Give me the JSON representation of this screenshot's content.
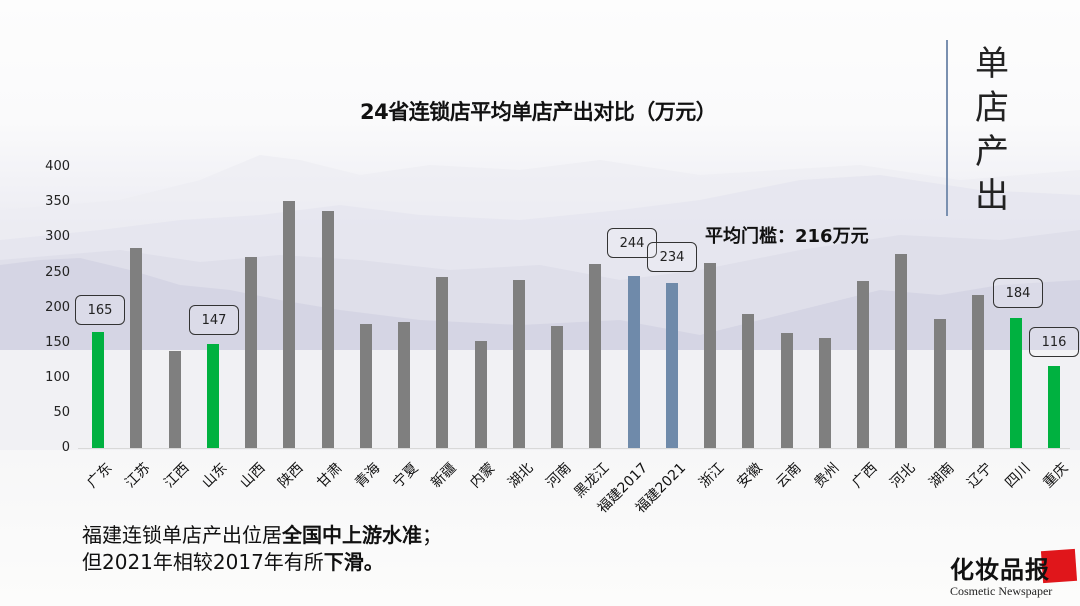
{
  "slide": {
    "side_title": [
      "单",
      "店",
      "产",
      "出"
    ],
    "average_label": "平均门槛：216万元",
    "note": {
      "line1_plain": "福建连锁单店产出位居",
      "line1_bold": "全国中上游水准",
      "line1_end": "；",
      "line2_plain": "但2021年相较2017年有所",
      "line2_bold": "下滑。"
    },
    "logo": {
      "cn": "化妆品",
      "cn_highlight": "报",
      "en": "Cosmetic Newspaper"
    }
  },
  "chart_data": {
    "type": "bar",
    "title": "24省连锁店平均单店产出对比（万元）",
    "xlabel": "",
    "ylabel": "",
    "ylim": [
      0,
      400
    ],
    "yticks": [
      0,
      50,
      100,
      150,
      200,
      250,
      300,
      350,
      400
    ],
    "grid": false,
    "legend": null,
    "categories": [
      "广东",
      "江苏",
      "江西",
      "山东",
      "山西",
      "陕西",
      "甘肃",
      "青海",
      "宁夏",
      "新疆",
      "内蒙",
      "湖北",
      "河南",
      "黑龙江",
      "福建2017",
      "福建2021",
      "浙江",
      "安徽",
      "云南",
      "贵州",
      "广西",
      "河北",
      "湖南",
      "辽宁",
      "四川",
      "重庆"
    ],
    "values": [
      165,
      284,
      137,
      147,
      271,
      350,
      336,
      176,
      179,
      243,
      152,
      238,
      173,
      261,
      244,
      234,
      262,
      190,
      163,
      156,
      237,
      275,
      183,
      217,
      184,
      116
    ],
    "bar_colors": [
      "#00b140",
      "#7f7f7f",
      "#7f7f7f",
      "#00b140",
      "#7f7f7f",
      "#7f7f7f",
      "#7f7f7f",
      "#7f7f7f",
      "#7f7f7f",
      "#7f7f7f",
      "#7f7f7f",
      "#7f7f7f",
      "#7f7f7f",
      "#7f7f7f",
      "#6f8aaa",
      "#6f8aaa",
      "#7f7f7f",
      "#7f7f7f",
      "#7f7f7f",
      "#7f7f7f",
      "#7f7f7f",
      "#7f7f7f",
      "#7f7f7f",
      "#7f7f7f",
      "#00b140",
      "#00b140"
    ],
    "data_labels": [
      {
        "category": "广东",
        "value": "165"
      },
      {
        "category": "山东",
        "value": "147"
      },
      {
        "category": "福建2017",
        "value": "244"
      },
      {
        "category": "福建2021",
        "value": "234"
      },
      {
        "category": "四川",
        "value": "184"
      },
      {
        "category": "重庆",
        "value": "116"
      }
    ],
    "annotations": [
      "平均门槛：216万元"
    ],
    "colors": {
      "highlight_green": "#00b140",
      "fujian_blue": "#6f8aaa",
      "default_gray": "#7f7f7f"
    }
  }
}
